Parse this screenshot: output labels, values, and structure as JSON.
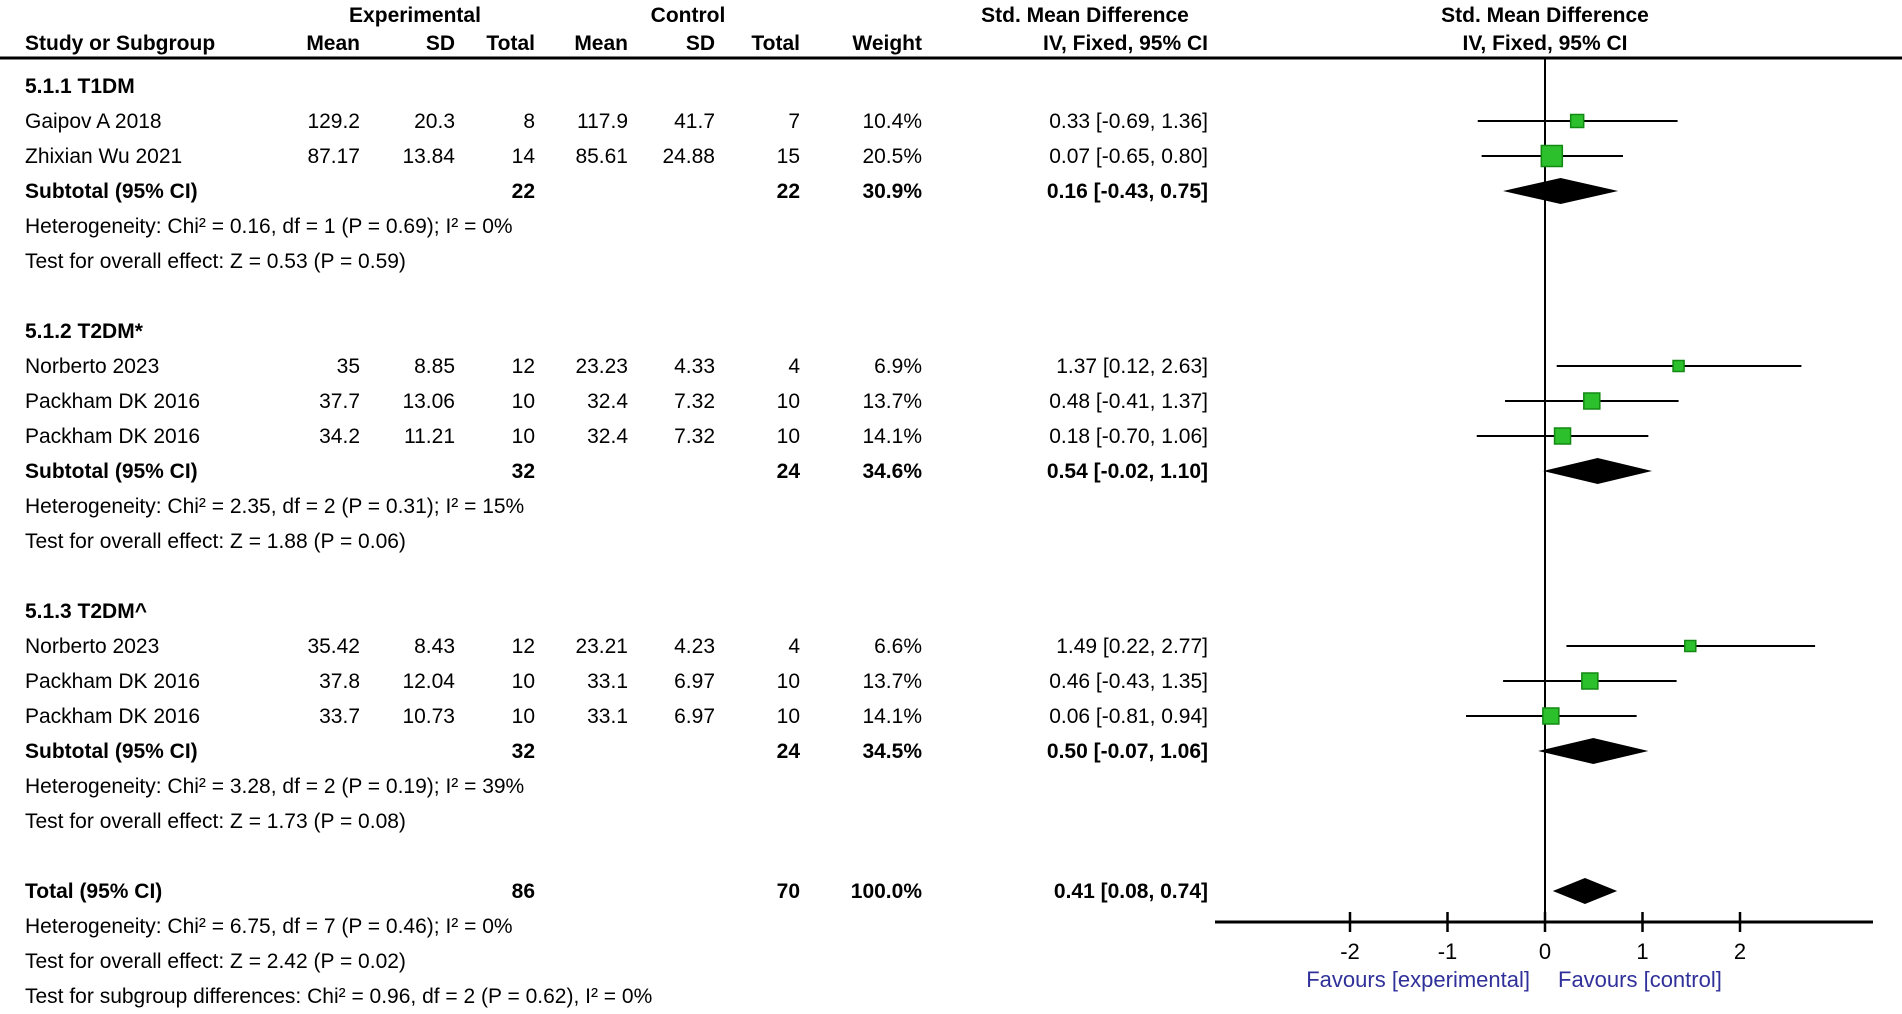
{
  "chart_data": {
    "type": "forest",
    "effect_measure": "Std. Mean Difference",
    "method": "IV, Fixed, 95% CI",
    "header": {
      "experimental": "Experimental",
      "control": "Control",
      "smd_left": "Std. Mean Difference",
      "smd_right": "Std. Mean Difference",
      "study_subgroup": "Study or Subgroup",
      "mean_exp": "Mean",
      "sd_exp": "SD",
      "total_exp": "Total",
      "mean_ctl": "Mean",
      "sd_ctl": "SD",
      "total_ctl": "Total",
      "weight": "Weight",
      "ci_left": "IV, Fixed, 95% CI",
      "ci_right": "IV, Fixed, 95% CI"
    },
    "groups": [
      {
        "label": "5.1.1 T1DM",
        "studies": [
          {
            "study": "Gaipov A 2018",
            "mean_exp": "129.2",
            "sd_exp": "20.3",
            "total_exp": "8",
            "mean_ctl": "117.9",
            "sd_ctl": "41.7",
            "total_ctl": "7",
            "weight": "10.4%",
            "ci_text": "0.33 [-0.69, 1.36]",
            "est": 0.33,
            "lo": -0.69,
            "hi": 1.36,
            "weight_pct": 10.4
          },
          {
            "study": "Zhixian Wu 2021",
            "mean_exp": "87.17",
            "sd_exp": "13.84",
            "total_exp": "14",
            "mean_ctl": "85.61",
            "sd_ctl": "24.88",
            "total_ctl": "15",
            "weight": "20.5%",
            "ci_text": "0.07 [-0.65, 0.80]",
            "est": 0.07,
            "lo": -0.65,
            "hi": 0.8,
            "weight_pct": 20.5
          }
        ],
        "subtotal": {
          "label": "Subtotal (95% CI)",
          "total_exp": "22",
          "total_ctl": "22",
          "weight": "30.9%",
          "ci_text": "0.16 [-0.43, 0.75]",
          "est": 0.16,
          "lo": -0.43,
          "hi": 0.75
        },
        "heterogeneity": "Heterogeneity: Chi² = 0.16, df = 1 (P = 0.69); I² = 0%",
        "overall_effect": "Test for overall effect: Z = 0.53 (P = 0.59)"
      },
      {
        "label": "5.1.2 T2DM*",
        "studies": [
          {
            "study": "Norberto 2023",
            "mean_exp": "35",
            "sd_exp": "8.85",
            "total_exp": "12",
            "mean_ctl": "23.23",
            "sd_ctl": "4.33",
            "total_ctl": "4",
            "weight": "6.9%",
            "ci_text": "1.37 [0.12, 2.63]",
            "est": 1.37,
            "lo": 0.12,
            "hi": 2.63,
            "weight_pct": 6.9
          },
          {
            "study": "Packham DK 2016",
            "mean_exp": "37.7",
            "sd_exp": "13.06",
            "total_exp": "10",
            "mean_ctl": "32.4",
            "sd_ctl": "7.32",
            "total_ctl": "10",
            "weight": "13.7%",
            "ci_text": "0.48 [-0.41, 1.37]",
            "est": 0.48,
            "lo": -0.41,
            "hi": 1.37,
            "weight_pct": 13.7
          },
          {
            "study": "Packham DK 2016",
            "mean_exp": "34.2",
            "sd_exp": "11.21",
            "total_exp": "10",
            "mean_ctl": "32.4",
            "sd_ctl": "7.32",
            "total_ctl": "10",
            "weight": "14.1%",
            "ci_text": "0.18 [-0.70, 1.06]",
            "est": 0.18,
            "lo": -0.7,
            "hi": 1.06,
            "weight_pct": 14.1
          }
        ],
        "subtotal": {
          "label": "Subtotal (95% CI)",
          "total_exp": "32",
          "total_ctl": "24",
          "weight": "34.6%",
          "ci_text": "0.54 [-0.02, 1.10]",
          "est": 0.54,
          "lo": -0.02,
          "hi": 1.1
        },
        "heterogeneity": "Heterogeneity: Chi² = 2.35, df = 2 (P = 0.31); I² = 15%",
        "overall_effect": "Test for overall effect: Z = 1.88 (P = 0.06)"
      },
      {
        "label": "5.1.3 T2DM^",
        "studies": [
          {
            "study": "Norberto 2023",
            "mean_exp": "35.42",
            "sd_exp": "8.43",
            "total_exp": "12",
            "mean_ctl": "23.21",
            "sd_ctl": "4.23",
            "total_ctl": "4",
            "weight": "6.6%",
            "ci_text": "1.49 [0.22, 2.77]",
            "est": 1.49,
            "lo": 0.22,
            "hi": 2.77,
            "weight_pct": 6.6
          },
          {
            "study": "Packham DK 2016",
            "mean_exp": "37.8",
            "sd_exp": "12.04",
            "total_exp": "10",
            "mean_ctl": "33.1",
            "sd_ctl": "6.97",
            "total_ctl": "10",
            "weight": "13.7%",
            "ci_text": "0.46 [-0.43, 1.35]",
            "est": 0.46,
            "lo": -0.43,
            "hi": 1.35,
            "weight_pct": 13.7
          },
          {
            "study": "Packham DK 2016",
            "mean_exp": "33.7",
            "sd_exp": "10.73",
            "total_exp": "10",
            "mean_ctl": "33.1",
            "sd_ctl": "6.97",
            "total_ctl": "10",
            "weight": "14.1%",
            "ci_text": "0.06 [-0.81, 0.94]",
            "est": 0.06,
            "lo": -0.81,
            "hi": 0.94,
            "weight_pct": 14.1
          }
        ],
        "subtotal": {
          "label": "Subtotal (95% CI)",
          "total_exp": "32",
          "total_ctl": "24",
          "weight": "34.5%",
          "ci_text": "0.50 [-0.07, 1.06]",
          "est": 0.5,
          "lo": -0.07,
          "hi": 1.06
        },
        "heterogeneity": "Heterogeneity: Chi² = 3.28, df = 2 (P = 0.19); I² = 39%",
        "overall_effect": "Test for overall effect: Z = 1.73 (P = 0.08)"
      }
    ],
    "total": {
      "label": "Total (95% CI)",
      "total_exp": "86",
      "total_ctl": "70",
      "weight": "100.0%",
      "ci_text": "0.41 [0.08, 0.74]",
      "est": 0.41,
      "lo": 0.08,
      "hi": 0.74
    },
    "total_heterogeneity": "Heterogeneity: Chi² = 6.75, df = 7 (P = 0.46); I² = 0%",
    "total_overall_effect": "Test for overall effect: Z = 2.42 (P = 0.02)",
    "subgroup_differences": "Test for subgroup differences: Chi² = 0.96, df = 2 (P = 0.62), I² = 0%",
    "axis": {
      "ticks": [
        -2,
        -1,
        0,
        1,
        2
      ],
      "min": -3.38,
      "max": 3.36,
      "favours_left": "Favours [experimental]",
      "favours_right": "Favours [control]"
    },
    "colors": {
      "marker": "#2cc12c",
      "marker_border": "#128912",
      "diamond": "#000000",
      "line": "#000000",
      "favours_text": "#30309a"
    }
  }
}
